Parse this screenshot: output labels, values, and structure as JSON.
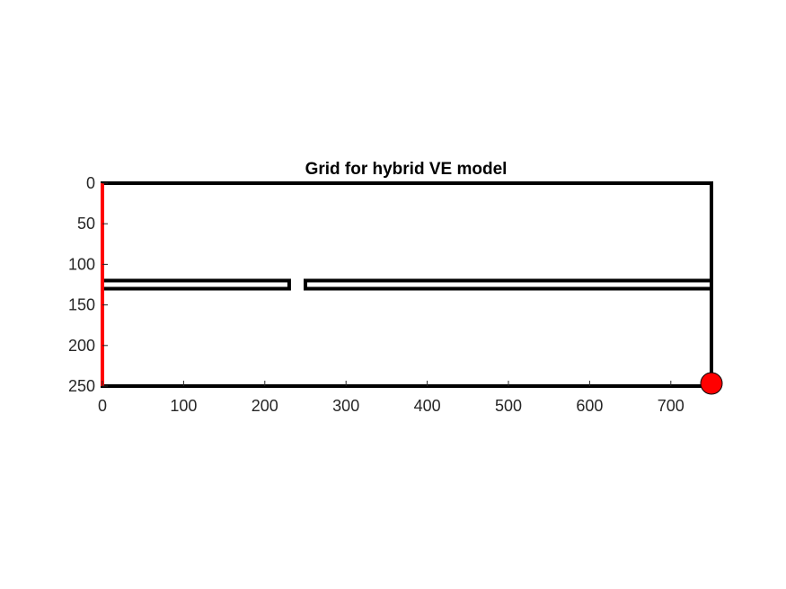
{
  "figure": {
    "title": "Grid for hybrid VE model",
    "x_ticks": [
      "0",
      "100",
      "200",
      "300",
      "400",
      "500",
      "600",
      "700"
    ],
    "y_ticks": [
      "0",
      "50",
      "100",
      "150",
      "200",
      "250"
    ]
  },
  "chart_data": {
    "type": "grid-outline",
    "title": "Grid for hybrid VE model",
    "xlim": [
      0,
      750
    ],
    "ylim": [
      0,
      250
    ],
    "y_direction": "reversed",
    "x_ticks": [
      0,
      100,
      200,
      300,
      400,
      500,
      600,
      700
    ],
    "y_ticks": [
      0,
      50,
      100,
      150,
      200,
      250
    ],
    "domain": {
      "x": [
        0,
        750
      ],
      "y": [
        0,
        250
      ]
    },
    "barrier_layer": {
      "y_top": 120,
      "y_bottom": 130,
      "gap_x": [
        230,
        250
      ],
      "segments": [
        [
          0,
          230
        ],
        [
          250,
          750
        ]
      ]
    },
    "boundary_condition": {
      "side": "left",
      "x": 0,
      "y": [
        0,
        250
      ],
      "color": "#ff0000"
    },
    "well": {
      "x": 750,
      "y": 250,
      "color": "#ff0000"
    },
    "colors": {
      "outline": "#000000",
      "boundary": "#ff0000",
      "well": "#ff0000"
    }
  }
}
